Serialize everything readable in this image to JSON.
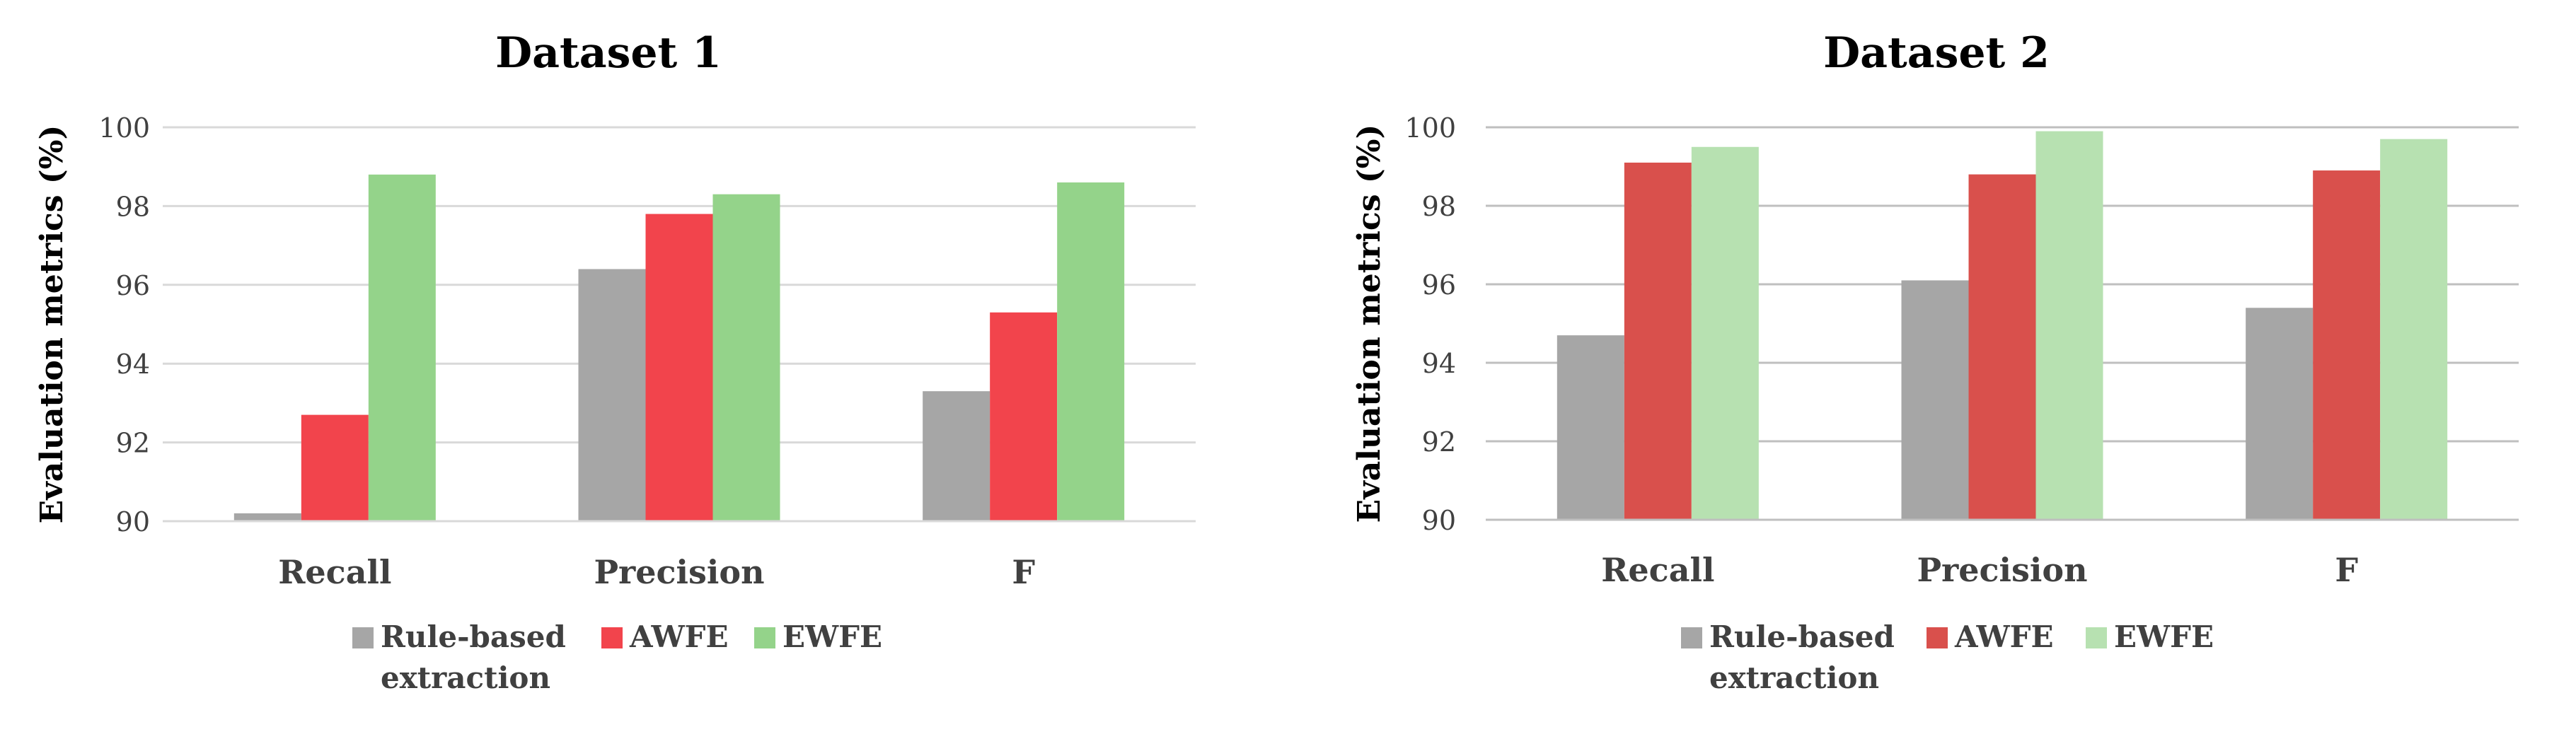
{
  "colors": {
    "rule_based": "#a6a6a6",
    "awfe_1": "#f2444c",
    "ewfe_1": "#94d38a",
    "awfe_2": "#d9504c",
    "ewfe_2": "#b7e1b1",
    "grid_1": "#d9d9d9",
    "grid_2": "#bfbfbf",
    "text": "#404040"
  },
  "chart_data": [
    {
      "type": "bar",
      "title": "Dataset 1",
      "ylabel": "Evaluation metrics  (%)",
      "xlabel": "",
      "categories": [
        "Recall",
        "Precision",
        "F"
      ],
      "ylim": [
        90,
        100
      ],
      "yticks": [
        90,
        92,
        94,
        96,
        98,
        100
      ],
      "grid": true,
      "legend_position": "bottom",
      "series": [
        {
          "name": "Rule-based extraction",
          "color_key": "rule_based",
          "values": [
            90.2,
            96.4,
            93.3
          ]
        },
        {
          "name": "AWFE",
          "color_key": "awfe_1",
          "values": [
            92.7,
            97.8,
            95.3
          ]
        },
        {
          "name": "EWFE",
          "color_key": "ewfe_1",
          "values": [
            98.8,
            98.3,
            98.6
          ]
        }
      ]
    },
    {
      "type": "bar",
      "title": "Dataset 2",
      "ylabel": "Evaluation metrics  (%)",
      "xlabel": "",
      "categories": [
        "Recall",
        "Precision",
        "F"
      ],
      "ylim": [
        90,
        100
      ],
      "yticks": [
        90,
        92,
        94,
        96,
        98,
        100
      ],
      "grid": true,
      "legend_position": "bottom",
      "series": [
        {
          "name": "Rule-based extraction",
          "color_key": "rule_based",
          "values": [
            94.7,
            96.1,
            95.4
          ]
        },
        {
          "name": "AWFE",
          "color_key": "awfe_2",
          "values": [
            99.1,
            98.8,
            98.9
          ]
        },
        {
          "name": "EWFE",
          "color_key": "ewfe_2",
          "values": [
            99.5,
            99.9,
            99.7
          ]
        }
      ]
    }
  ]
}
